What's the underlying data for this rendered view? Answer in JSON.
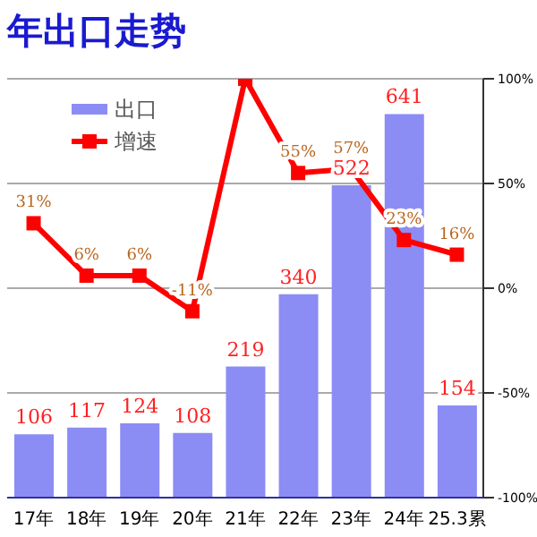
{
  "chart_data": {
    "type": "bar",
    "title": "年出口走势",
    "categories": [
      "17年",
      "18年",
      "19年",
      "20年",
      "21年",
      "22年",
      "23年",
      "24年",
      "25.3累"
    ],
    "series": [
      {
        "name": "出口",
        "color": "#8c8cf5",
        "values": [
          106,
          117,
          124,
          108,
          219,
          340,
          522,
          641,
          154
        ],
        "value_labels": [
          "106",
          "117",
          "124",
          "108",
          "219",
          "340",
          "522",
          "641",
          "154"
        ]
      },
      {
        "name": "增速",
        "type": "line",
        "axis": "y2",
        "color": "#ff0000",
        "marker": "square",
        "values": [
          31,
          6,
          6,
          -11,
          100,
          55,
          57,
          23,
          16
        ],
        "value_labels": [
          "31%",
          "6%",
          "6%",
          "-11%",
          null,
          "55%",
          "57%",
          "23%",
          "16%"
        ]
      }
    ],
    "ylim": [
      0,
      700
    ],
    "y2lim": [
      -100,
      100
    ],
    "y2ticks": [
      {
        "value": 100,
        "label": "100%"
      },
      {
        "value": 50,
        "label": "50%"
      },
      {
        "value": 0,
        "label": "0%"
      },
      {
        "value": -50,
        "label": "-50%"
      },
      {
        "value": -100,
        "label": "-100%"
      }
    ],
    "grid": true,
    "legend": "top left"
  }
}
